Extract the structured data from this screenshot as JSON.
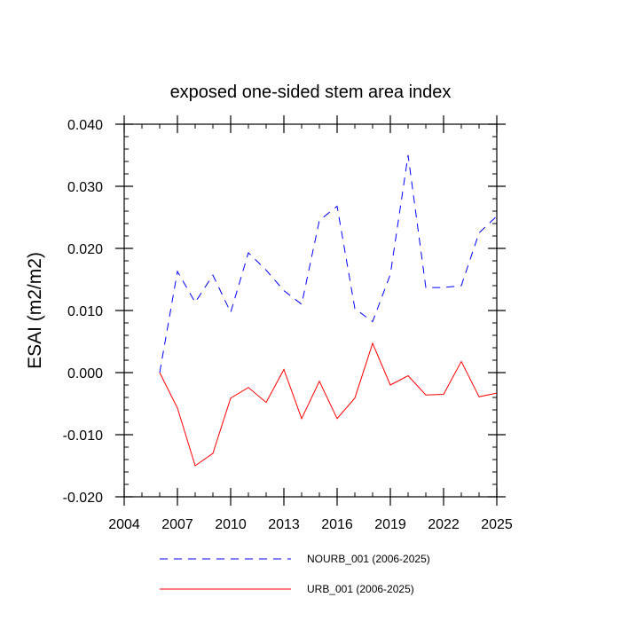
{
  "chart_data": {
    "type": "line",
    "title": "exposed one-sided stem area index",
    "xlabel": "",
    "ylabel": "ESAI  (m2/m2)",
    "xlim": [
      2004,
      2025
    ],
    "ylim": [
      -0.02,
      0.04
    ],
    "x_ticks": [
      2004,
      2007,
      2010,
      2013,
      2016,
      2019,
      2022,
      2025
    ],
    "x_tick_labels": [
      "2004",
      "2007",
      "2010",
      "2013",
      "2016",
      "2019",
      "2022",
      "2025"
    ],
    "y_ticks": [
      -0.02,
      -0.01,
      0.0,
      0.01,
      0.02,
      0.03,
      0.04
    ],
    "y_tick_labels": [
      "-0.020",
      "-0.010",
      "0.000",
      "0.010",
      "0.020",
      "0.030",
      "0.040"
    ],
    "x": [
      2006,
      2007,
      2008,
      2009,
      2010,
      2011,
      2012,
      2013,
      2014,
      2015,
      2016,
      2017,
      2018,
      2019,
      2020,
      2021,
      2022,
      2023,
      2024,
      2025
    ],
    "series": [
      {
        "name": "NOURB_001 (2006-2025)",
        "color": "#0000ff",
        "dash": "dashed",
        "values": [
          0.0,
          0.0163,
          0.0113,
          0.0157,
          0.0097,
          0.0193,
          0.0165,
          0.0132,
          0.011,
          0.0245,
          0.0268,
          0.0103,
          0.0082,
          0.0158,
          0.035,
          0.0137,
          0.0137,
          0.014,
          0.0225,
          0.0252
        ]
      },
      {
        "name": "URB_001 (2006-2025)",
        "color": "#ff0000",
        "dash": "solid",
        "values": [
          0.0,
          -0.0057,
          -0.015,
          -0.013,
          -0.0041,
          -0.0024,
          -0.0048,
          0.0005,
          -0.0074,
          -0.0014,
          -0.0074,
          -0.0041,
          0.0047,
          -0.002,
          -0.0005,
          -0.0036,
          -0.0035,
          0.0018,
          -0.0039,
          -0.0033
        ]
      }
    ],
    "grid": false,
    "legend_position": "bottom"
  }
}
